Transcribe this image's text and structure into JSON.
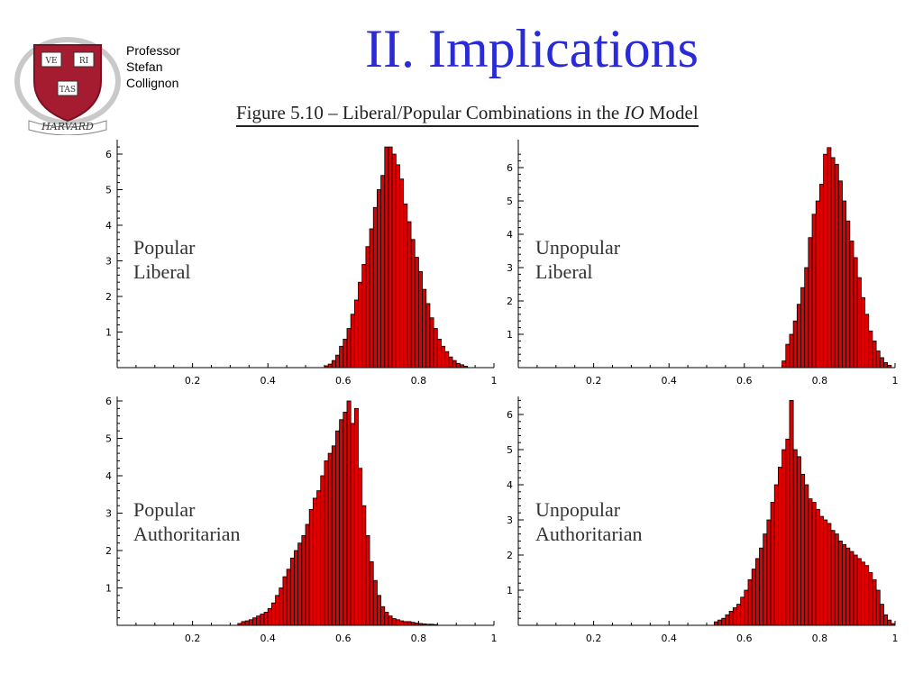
{
  "slide": {
    "title": "II. Implications",
    "author_lines": [
      "Professor",
      "Stefan",
      "Collignon"
    ],
    "logo": {
      "shield_text": [
        "VE",
        "RI",
        "TAS"
      ],
      "banner_text": "HARVARD"
    },
    "figure_caption": {
      "prefix": "Figure 5.10 – Liberal/Popular Combinations in the ",
      "italic": "IO",
      "suffix": " Model"
    }
  },
  "colors": {
    "title": "#2b2bd6",
    "bar_fill": "#dd0000",
    "bar_stroke": "#000000",
    "shield": "#a51c30"
  },
  "chart_data": [
    {
      "type": "bar",
      "label_lines": [
        "Popular",
        "Liberal"
      ],
      "x_range": [
        0,
        1
      ],
      "y_range": [
        0,
        6.3
      ],
      "x_ticks": [
        "0.2",
        "0.4",
        "0.6",
        "0.8",
        "1"
      ],
      "y_ticks": [
        "1",
        "2",
        "3",
        "4",
        "5",
        "6"
      ],
      "bin_width": 0.01,
      "bins": [
        [
          0.55,
          0.05
        ],
        [
          0.56,
          0.1
        ],
        [
          0.57,
          0.2
        ],
        [
          0.58,
          0.35
        ],
        [
          0.59,
          0.6
        ],
        [
          0.6,
          0.8
        ],
        [
          0.61,
          1.1
        ],
        [
          0.62,
          1.5
        ],
        [
          0.63,
          1.9
        ],
        [
          0.64,
          2.4
        ],
        [
          0.65,
          2.9
        ],
        [
          0.66,
          3.4
        ],
        [
          0.67,
          3.9
        ],
        [
          0.68,
          4.5
        ],
        [
          0.69,
          5.0
        ],
        [
          0.7,
          5.4
        ],
        [
          0.71,
          6.2
        ],
        [
          0.72,
          6.2
        ],
        [
          0.73,
          6.0
        ],
        [
          0.74,
          5.7
        ],
        [
          0.75,
          5.3
        ],
        [
          0.76,
          4.6
        ],
        [
          0.77,
          4.1
        ],
        [
          0.78,
          3.6
        ],
        [
          0.79,
          3.1
        ],
        [
          0.8,
          2.7
        ],
        [
          0.81,
          2.2
        ],
        [
          0.82,
          1.8
        ],
        [
          0.83,
          1.4
        ],
        [
          0.84,
          1.1
        ],
        [
          0.85,
          0.8
        ],
        [
          0.86,
          0.6
        ],
        [
          0.87,
          0.45
        ],
        [
          0.88,
          0.3
        ],
        [
          0.89,
          0.2
        ],
        [
          0.9,
          0.12
        ],
        [
          0.91,
          0.08
        ],
        [
          0.92,
          0.04
        ]
      ]
    },
    {
      "type": "bar",
      "label_lines": [
        "Unpopular",
        "Liberal"
      ],
      "x_range": [
        0,
        1
      ],
      "y_range": [
        0,
        6.6
      ],
      "x_ticks": [
        "0.2",
        "0.4",
        "0.6",
        "0.8",
        "1"
      ],
      "y_ticks": [
        "1",
        "2",
        "3",
        "4",
        "5",
        "6"
      ],
      "bin_width": 0.01,
      "bins": [
        [
          0.7,
          0.2
        ],
        [
          0.71,
          0.7
        ],
        [
          0.72,
          1.0
        ],
        [
          0.73,
          1.4
        ],
        [
          0.74,
          1.9
        ],
        [
          0.75,
          2.4
        ],
        [
          0.76,
          3.0
        ],
        [
          0.77,
          3.9
        ],
        [
          0.78,
          4.6
        ],
        [
          0.79,
          5.0
        ],
        [
          0.8,
          5.5
        ],
        [
          0.81,
          6.4
        ],
        [
          0.82,
          6.6
        ],
        [
          0.83,
          6.3
        ],
        [
          0.84,
          6.1
        ],
        [
          0.85,
          5.6
        ],
        [
          0.86,
          5.0
        ],
        [
          0.87,
          4.4
        ],
        [
          0.88,
          3.8
        ],
        [
          0.89,
          3.3
        ],
        [
          0.9,
          2.7
        ],
        [
          0.91,
          2.1
        ],
        [
          0.92,
          1.6
        ],
        [
          0.93,
          1.1
        ],
        [
          0.94,
          0.8
        ],
        [
          0.95,
          0.5
        ],
        [
          0.96,
          0.3
        ],
        [
          0.97,
          0.15
        ],
        [
          0.98,
          0.07
        ]
      ]
    },
    {
      "type": "bar",
      "label_lines": [
        "Popular",
        "Authoritarian"
      ],
      "x_range": [
        0,
        1
      ],
      "y_range": [
        0,
        6.1
      ],
      "x_ticks": [
        "0.2",
        "0.4",
        "0.6",
        "0.8",
        "1"
      ],
      "y_ticks": [
        "1",
        "2",
        "3",
        "4",
        "5",
        "6"
      ],
      "bin_width": 0.01,
      "bins": [
        [
          0.32,
          0.05
        ],
        [
          0.33,
          0.1
        ],
        [
          0.34,
          0.12
        ],
        [
          0.35,
          0.15
        ],
        [
          0.36,
          0.2
        ],
        [
          0.37,
          0.25
        ],
        [
          0.38,
          0.3
        ],
        [
          0.39,
          0.35
        ],
        [
          0.4,
          0.45
        ],
        [
          0.41,
          0.6
        ],
        [
          0.42,
          0.8
        ],
        [
          0.43,
          1.0
        ],
        [
          0.44,
          1.3
        ],
        [
          0.45,
          1.5
        ],
        [
          0.46,
          1.8
        ],
        [
          0.47,
          2.0
        ],
        [
          0.48,
          2.2
        ],
        [
          0.49,
          2.4
        ],
        [
          0.5,
          2.7
        ],
        [
          0.51,
          3.1
        ],
        [
          0.52,
          3.4
        ],
        [
          0.53,
          3.6
        ],
        [
          0.54,
          4.0
        ],
        [
          0.55,
          4.4
        ],
        [
          0.56,
          4.6
        ],
        [
          0.57,
          4.8
        ],
        [
          0.58,
          5.2
        ],
        [
          0.59,
          5.5
        ],
        [
          0.6,
          5.7
        ],
        [
          0.61,
          6.0
        ],
        [
          0.62,
          5.4
        ],
        [
          0.63,
          5.8
        ],
        [
          0.64,
          4.2
        ],
        [
          0.65,
          3.2
        ],
        [
          0.66,
          2.4
        ],
        [
          0.67,
          1.7
        ],
        [
          0.68,
          1.2
        ],
        [
          0.69,
          0.8
        ],
        [
          0.7,
          0.5
        ],
        [
          0.71,
          0.35
        ],
        [
          0.72,
          0.25
        ],
        [
          0.73,
          0.18
        ],
        [
          0.74,
          0.15
        ],
        [
          0.75,
          0.12
        ],
        [
          0.76,
          0.1
        ],
        [
          0.77,
          0.1
        ],
        [
          0.78,
          0.08
        ],
        [
          0.79,
          0.06
        ],
        [
          0.8,
          0.05
        ],
        [
          0.81,
          0.04
        ],
        [
          0.82,
          0.03
        ],
        [
          0.83,
          0.03
        ],
        [
          0.84,
          0.02
        ]
      ]
    },
    {
      "type": "bar",
      "label_lines": [
        "Unpopular",
        "Authoritarian"
      ],
      "x_range": [
        0,
        1
      ],
      "y_range": [
        0,
        6.5
      ],
      "x_ticks": [
        "0.2",
        "0.4",
        "0.6",
        "0.8",
        "1"
      ],
      "y_ticks": [
        "1",
        "2",
        "3",
        "4",
        "5",
        "6"
      ],
      "bin_width": 0.01,
      "bins": [
        [
          0.52,
          0.1
        ],
        [
          0.53,
          0.15
        ],
        [
          0.54,
          0.2
        ],
        [
          0.55,
          0.3
        ],
        [
          0.56,
          0.4
        ],
        [
          0.57,
          0.5
        ],
        [
          0.58,
          0.6
        ],
        [
          0.59,
          0.8
        ],
        [
          0.6,
          1.0
        ],
        [
          0.61,
          1.3
        ],
        [
          0.62,
          1.6
        ],
        [
          0.63,
          1.9
        ],
        [
          0.64,
          2.2
        ],
        [
          0.65,
          2.6
        ],
        [
          0.66,
          3.0
        ],
        [
          0.67,
          3.5
        ],
        [
          0.68,
          4.0
        ],
        [
          0.69,
          4.5
        ],
        [
          0.7,
          5.0
        ],
        [
          0.71,
          5.3
        ],
        [
          0.72,
          6.4
        ],
        [
          0.73,
          5.0
        ],
        [
          0.74,
          4.8
        ],
        [
          0.75,
          4.3
        ],
        [
          0.76,
          4.0
        ],
        [
          0.77,
          3.6
        ],
        [
          0.78,
          3.5
        ],
        [
          0.79,
          3.3
        ],
        [
          0.8,
          3.1
        ],
        [
          0.81,
          3.0
        ],
        [
          0.82,
          2.9
        ],
        [
          0.83,
          2.7
        ],
        [
          0.84,
          2.6
        ],
        [
          0.85,
          2.4
        ],
        [
          0.86,
          2.3
        ],
        [
          0.87,
          2.2
        ],
        [
          0.88,
          2.1
        ],
        [
          0.89,
          2.0
        ],
        [
          0.9,
          1.9
        ],
        [
          0.91,
          1.8
        ],
        [
          0.92,
          1.7
        ],
        [
          0.93,
          1.5
        ],
        [
          0.94,
          1.3
        ],
        [
          0.95,
          1.0
        ],
        [
          0.96,
          0.6
        ],
        [
          0.97,
          0.3
        ],
        [
          0.98,
          0.15
        ],
        [
          0.99,
          0.05
        ]
      ]
    }
  ]
}
